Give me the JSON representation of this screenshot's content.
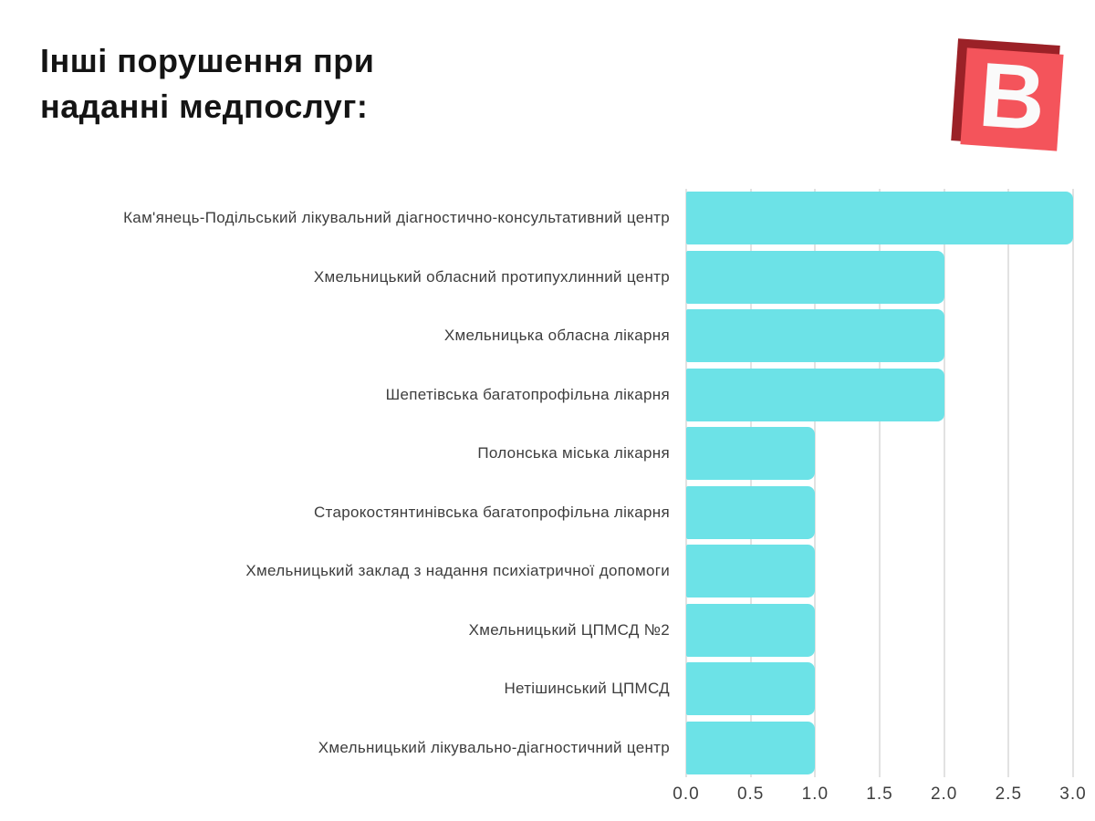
{
  "page": {
    "background": "#ffffff"
  },
  "header": {
    "title": "Інші порушення при наданні медпослуг:",
    "title_lines": [
      "Інші порушення при",
      "наданні медпослуг:"
    ]
  },
  "logo": {
    "letter": "В",
    "front_color": "#f4545b",
    "shadow_color": "#9b2127",
    "letter_color": "#fafafa"
  },
  "chart_data": {
    "type": "bar",
    "orientation": "horizontal",
    "title": "Інші порушення при наданні медпослуг:",
    "categories": [
      "Кам'янець-Подільський лікувальний діагностично-консультативний центр",
      "Хмельницький обласний протипухлинний центр",
      "Хмельницька обласна лікарня",
      "Шепетівська багатопрофільна лікарня",
      "Полонська міська лікарня",
      "Старокостянтинівська багатопрофільна лікарня",
      "Хмельницький заклад з надання психіатричної допомоги",
      "Хмельницький ЦПМСД №2",
      "Нетішинський ЦПМСД",
      "Хмельницький лікувально-діагностичний центр"
    ],
    "values": [
      3,
      2,
      2,
      2,
      1,
      1,
      1,
      1,
      1,
      1
    ],
    "xlabel": "",
    "ylabel": "",
    "xlim": [
      0,
      3
    ],
    "x_ticks": [
      "0.0",
      "0.5",
      "1.0",
      "1.5",
      "2.0",
      "2.5",
      "3.0"
    ],
    "grid": true,
    "legend": false,
    "bar_color": "#6ce2e7",
    "gridline_color": "#e2e2e2",
    "label_color": "#3d3d3d",
    "tick_color": "#3f3f3f"
  }
}
